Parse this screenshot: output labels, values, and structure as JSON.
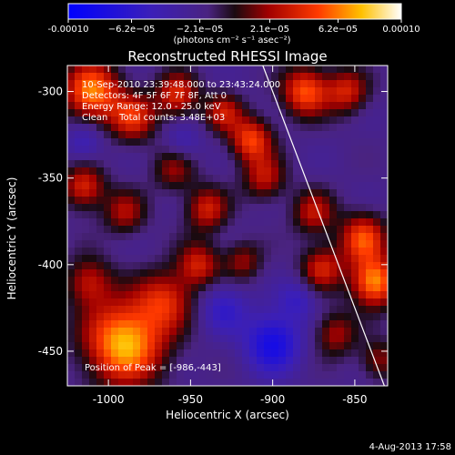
{
  "chart_data": {
    "type": "heatmap",
    "title": "Reconstructed RHESSI Image",
    "xlabel": "Heliocentric X (arcsec)",
    "ylabel": "Heliocentric Y (arcsec)",
    "xlim": [
      -1025,
      -830
    ],
    "ylim": [
      -470,
      -285
    ],
    "xticks": [
      "-1000",
      "-950",
      "-900",
      "-850"
    ],
    "xtick_values": [
      -1000,
      -950,
      -900,
      -850
    ],
    "yticks": [
      "-300",
      "-350",
      "-400",
      "-450"
    ],
    "ytick_values": [
      -300,
      -350,
      -400,
      -450
    ],
    "colorbar": {
      "ticks": [
        "-0.00010",
        "−6.2e−05",
        "−2.1e−05",
        "2.1e−05",
        "6.2e−05",
        "0.00010"
      ],
      "tick_values": [
        -0.0001,
        -6.2e-05,
        -2.1e-05,
        2.1e-05,
        6.2e-05,
        0.0001
      ],
      "range": [
        -0.0001,
        0.0001
      ],
      "units": "(photons cm⁻² s⁻¹ asec⁻²)"
    },
    "info_lines": [
      "10-Sep-2010 23:39:48.000 to 23:43:24.000",
      "Detectors: 4F 5F 6F 7F 8F, Att 0",
      "Energy Range: 12.0 - 25.0 keV",
      "Clean    Total counts: 3.48E+03"
    ],
    "peak_label": "Position of Peak = [-986,-443]",
    "peak": [
      -986,
      -443
    ],
    "limb_line": [
      [
        -906,
        -285
      ],
      [
        -832,
        -470
      ]
    ],
    "hotspots": [
      {
        "x": -990,
        "y": -445,
        "amp": 1.0,
        "s": 17
      },
      {
        "x": -965,
        "y": -420,
        "amp": 0.55,
        "s": 12
      },
      {
        "x": -1012,
        "y": -410,
        "amp": 0.5,
        "s": 10
      },
      {
        "x": -1010,
        "y": -300,
        "amp": 0.85,
        "s": 12
      },
      {
        "x": -985,
        "y": -315,
        "amp": 0.6,
        "s": 10
      },
      {
        "x": -958,
        "y": -302,
        "amp": 0.6,
        "s": 9
      },
      {
        "x": -930,
        "y": -312,
        "amp": 0.5,
        "s": 8
      },
      {
        "x": -913,
        "y": -328,
        "amp": 0.7,
        "s": 9
      },
      {
        "x": -905,
        "y": -350,
        "amp": 0.5,
        "s": 9
      },
      {
        "x": -880,
        "y": -300,
        "amp": 0.75,
        "s": 10
      },
      {
        "x": -855,
        "y": -300,
        "amp": 0.55,
        "s": 9
      },
      {
        "x": -1015,
        "y": -355,
        "amp": 0.6,
        "s": 9
      },
      {
        "x": -990,
        "y": -370,
        "amp": 0.45,
        "s": 9
      },
      {
        "x": -960,
        "y": -345,
        "amp": 0.4,
        "s": 9
      },
      {
        "x": -940,
        "y": -368,
        "amp": 0.55,
        "s": 9
      },
      {
        "x": -945,
        "y": -400,
        "amp": 0.55,
        "s": 9
      },
      {
        "x": -918,
        "y": -398,
        "amp": 0.4,
        "s": 8
      },
      {
        "x": -875,
        "y": -370,
        "amp": 0.5,
        "s": 9
      },
      {
        "x": -870,
        "y": -402,
        "amp": 0.55,
        "s": 9
      },
      {
        "x": -845,
        "y": -385,
        "amp": 0.7,
        "s": 10
      },
      {
        "x": -838,
        "y": -410,
        "amp": 0.9,
        "s": 10
      },
      {
        "x": -862,
        "y": -440,
        "amp": 0.45,
        "s": 9
      },
      {
        "x": -835,
        "y": -455,
        "amp": 0.4,
        "s": 8
      },
      {
        "x": -900,
        "y": -445,
        "amp": -0.6,
        "s": 12
      },
      {
        "x": -930,
        "y": -425,
        "amp": -0.35,
        "s": 10
      },
      {
        "x": -1015,
        "y": -330,
        "amp": -0.3,
        "s": 8
      },
      {
        "x": -955,
        "y": -330,
        "amp": -0.25,
        "s": 8
      },
      {
        "x": -885,
        "y": -420,
        "amp": -0.3,
        "s": 8
      }
    ]
  }
}
